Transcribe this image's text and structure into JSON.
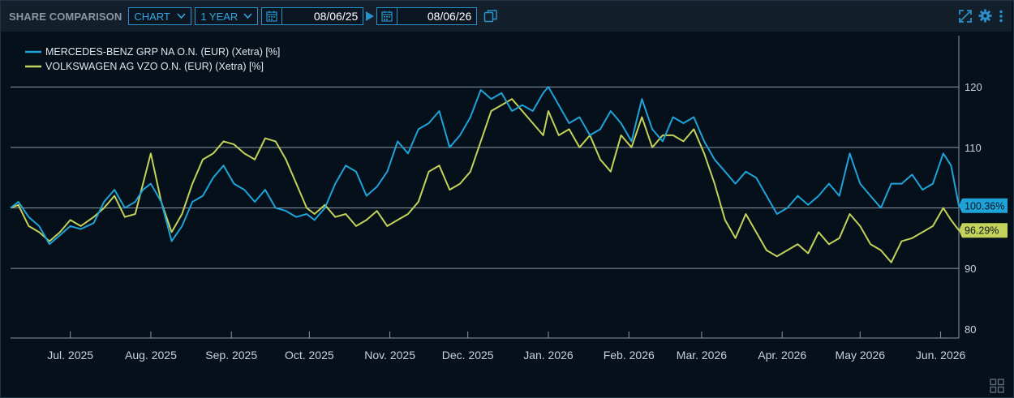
{
  "toolbar": {
    "title": "SHARE COMPARISON",
    "view_select": "CHART",
    "period_select": "1 YEAR",
    "date_from": "08/06/25",
    "date_to": "08/06/26"
  },
  "colors": {
    "mercedes": "#1ea3d9",
    "volkswagen": "#c3d25a",
    "accent": "#2a91c9",
    "grid": "#8a98a6"
  },
  "chart_data": {
    "type": "line",
    "y_ticks": [
      80,
      90,
      100,
      110,
      120
    ],
    "ylim": [
      78.5,
      129
    ],
    "x_ticks": [
      "Jul. 2025",
      "Aug. 2025",
      "Sep. 2025",
      "Oct. 2025",
      "Nov. 2025",
      "Dec. 2025",
      "Jan. 2026",
      "Feb. 2026",
      "Mar. 2026",
      "Apr. 2026",
      "May 2026",
      "Jun. 2026"
    ],
    "x_start": "2025-06-08",
    "x_end": "2026-06-08",
    "end_labels": [
      "100.36%",
      "96.29%"
    ],
    "series": [
      {
        "name": "MERCEDES-BENZ GRP NA O.N. (EUR) (Xetra) [%]",
        "points": [
          [
            "2025-06-08",
            100
          ],
          [
            "2025-06-11",
            101
          ],
          [
            "2025-06-15",
            98.5
          ],
          [
            "2025-06-19",
            97
          ],
          [
            "2025-06-23",
            94
          ],
          [
            "2025-06-27",
            95.5
          ],
          [
            "2025-07-01",
            97
          ],
          [
            "2025-07-05",
            96.5
          ],
          [
            "2025-07-10",
            97.5
          ],
          [
            "2025-07-14",
            101
          ],
          [
            "2025-07-18",
            103
          ],
          [
            "2025-07-22",
            100
          ],
          [
            "2025-07-26",
            101
          ],
          [
            "2025-07-29",
            103
          ],
          [
            "2025-08-01",
            104
          ],
          [
            "2025-08-05",
            101
          ],
          [
            "2025-08-09",
            94.5
          ],
          [
            "2025-08-13",
            97
          ],
          [
            "2025-08-17",
            101
          ],
          [
            "2025-08-21",
            102
          ],
          [
            "2025-08-25",
            105
          ],
          [
            "2025-08-29",
            107
          ],
          [
            "2025-09-02",
            104
          ],
          [
            "2025-09-06",
            103
          ],
          [
            "2025-09-10",
            101
          ],
          [
            "2025-09-14",
            103
          ],
          [
            "2025-09-18",
            100
          ],
          [
            "2025-09-22",
            99.5
          ],
          [
            "2025-09-26",
            98.5
          ],
          [
            "2025-09-30",
            99
          ],
          [
            "2025-10-03",
            98
          ],
          [
            "2025-10-07",
            100
          ],
          [
            "2025-10-11",
            104
          ],
          [
            "2025-10-15",
            107
          ],
          [
            "2025-10-19",
            106
          ],
          [
            "2025-10-23",
            102
          ],
          [
            "2025-10-27",
            103.5
          ],
          [
            "2025-10-31",
            106
          ],
          [
            "2025-11-04",
            111
          ],
          [
            "2025-11-08",
            109
          ],
          [
            "2025-11-12",
            113
          ],
          [
            "2025-11-16",
            114
          ],
          [
            "2025-11-20",
            116
          ],
          [
            "2025-11-24",
            110
          ],
          [
            "2025-11-28",
            112
          ],
          [
            "2025-12-02",
            115
          ],
          [
            "2025-12-06",
            119.5
          ],
          [
            "2025-12-10",
            118
          ],
          [
            "2025-12-14",
            119
          ],
          [
            "2025-12-18",
            116
          ],
          [
            "2025-12-22",
            117
          ],
          [
            "2025-12-26",
            116
          ],
          [
            "2025-12-30",
            119
          ],
          [
            "2026-01-01",
            120
          ],
          [
            "2026-01-05",
            117
          ],
          [
            "2026-01-09",
            114
          ],
          [
            "2026-01-13",
            115
          ],
          [
            "2026-01-17",
            112
          ],
          [
            "2026-01-21",
            113
          ],
          [
            "2026-01-25",
            116
          ],
          [
            "2026-01-29",
            114
          ],
          [
            "2026-02-02",
            111
          ],
          [
            "2026-02-06",
            118
          ],
          [
            "2026-02-10",
            113
          ],
          [
            "2026-02-14",
            111
          ],
          [
            "2026-02-18",
            115
          ],
          [
            "2026-02-22",
            114
          ],
          [
            "2026-02-26",
            115
          ],
          [
            "2026-03-02",
            111
          ],
          [
            "2026-03-06",
            108
          ],
          [
            "2026-03-10",
            106
          ],
          [
            "2026-03-14",
            104
          ],
          [
            "2026-03-18",
            106
          ],
          [
            "2026-03-22",
            105
          ],
          [
            "2026-03-26",
            102
          ],
          [
            "2026-03-30",
            99
          ],
          [
            "2026-04-03",
            100
          ],
          [
            "2026-04-07",
            102
          ],
          [
            "2026-04-11",
            100.5
          ],
          [
            "2026-04-15",
            102
          ],
          [
            "2026-04-19",
            104
          ],
          [
            "2026-04-23",
            102
          ],
          [
            "2026-04-27",
            109
          ],
          [
            "2026-05-01",
            104
          ],
          [
            "2026-05-05",
            102
          ],
          [
            "2026-05-09",
            100
          ],
          [
            "2026-05-13",
            104
          ],
          [
            "2026-05-17",
            104
          ],
          [
            "2026-05-21",
            105.5
          ],
          [
            "2026-05-25",
            103
          ],
          [
            "2026-05-29",
            104
          ],
          [
            "2026-06-02",
            109
          ],
          [
            "2026-06-05",
            107
          ],
          [
            "2026-06-08",
            100.36
          ]
        ]
      },
      {
        "name": "VOLKSWAGEN AG VZO O.N. (EUR) (Xetra) [%]",
        "points": [
          [
            "2025-06-08",
            100
          ],
          [
            "2025-06-11",
            100.5
          ],
          [
            "2025-06-15",
            97
          ],
          [
            "2025-06-19",
            96
          ],
          [
            "2025-06-23",
            94.5
          ],
          [
            "2025-06-27",
            96
          ],
          [
            "2025-07-01",
            98
          ],
          [
            "2025-07-05",
            97
          ],
          [
            "2025-07-10",
            98.5
          ],
          [
            "2025-07-14",
            100
          ],
          [
            "2025-07-18",
            102
          ],
          [
            "2025-07-22",
            98.5
          ],
          [
            "2025-07-26",
            99
          ],
          [
            "2025-07-29",
            104
          ],
          [
            "2025-08-01",
            109
          ],
          [
            "2025-08-05",
            101
          ],
          [
            "2025-08-09",
            96
          ],
          [
            "2025-08-13",
            99
          ],
          [
            "2025-08-17",
            104
          ],
          [
            "2025-08-21",
            108
          ],
          [
            "2025-08-25",
            109
          ],
          [
            "2025-08-29",
            111
          ],
          [
            "2025-09-02",
            110.5
          ],
          [
            "2025-09-06",
            109
          ],
          [
            "2025-09-10",
            108
          ],
          [
            "2025-09-14",
            111.5
          ],
          [
            "2025-09-18",
            111
          ],
          [
            "2025-09-22",
            108
          ],
          [
            "2025-09-26",
            104
          ],
          [
            "2025-09-30",
            100
          ],
          [
            "2025-10-03",
            99
          ],
          [
            "2025-10-07",
            100.5
          ],
          [
            "2025-10-11",
            98.5
          ],
          [
            "2025-10-15",
            99
          ],
          [
            "2025-10-19",
            97
          ],
          [
            "2025-10-23",
            98
          ],
          [
            "2025-10-27",
            99.5
          ],
          [
            "2025-10-31",
            97
          ],
          [
            "2025-11-04",
            98
          ],
          [
            "2025-11-08",
            99
          ],
          [
            "2025-11-12",
            101
          ],
          [
            "2025-11-16",
            106
          ],
          [
            "2025-11-20",
            107
          ],
          [
            "2025-11-24",
            103
          ],
          [
            "2025-11-28",
            104
          ],
          [
            "2025-12-02",
            106
          ],
          [
            "2025-12-06",
            111
          ],
          [
            "2025-12-10",
            116
          ],
          [
            "2025-12-14",
            117
          ],
          [
            "2025-12-18",
            118
          ],
          [
            "2025-12-22",
            116
          ],
          [
            "2025-12-26",
            114
          ],
          [
            "2025-12-30",
            112
          ],
          [
            "2026-01-01",
            116
          ],
          [
            "2026-01-05",
            112
          ],
          [
            "2026-01-09",
            113
          ],
          [
            "2026-01-13",
            110
          ],
          [
            "2026-01-17",
            112
          ],
          [
            "2026-01-21",
            108
          ],
          [
            "2026-01-25",
            106
          ],
          [
            "2026-01-29",
            112
          ],
          [
            "2026-02-02",
            110
          ],
          [
            "2026-02-06",
            115
          ],
          [
            "2026-02-10",
            110
          ],
          [
            "2026-02-14",
            112
          ],
          [
            "2026-02-18",
            112
          ],
          [
            "2026-02-22",
            111
          ],
          [
            "2026-02-26",
            113
          ],
          [
            "2026-03-02",
            109
          ],
          [
            "2026-03-06",
            104
          ],
          [
            "2026-03-10",
            98
          ],
          [
            "2026-03-14",
            95
          ],
          [
            "2026-03-18",
            99
          ],
          [
            "2026-03-22",
            96
          ],
          [
            "2026-03-26",
            93
          ],
          [
            "2026-03-30",
            92
          ],
          [
            "2026-04-03",
            93
          ],
          [
            "2026-04-07",
            94
          ],
          [
            "2026-04-11",
            92.5
          ],
          [
            "2026-04-15",
            96
          ],
          [
            "2026-04-19",
            94
          ],
          [
            "2026-04-23",
            95
          ],
          [
            "2026-04-27",
            99
          ],
          [
            "2026-05-01",
            97
          ],
          [
            "2026-05-05",
            94
          ],
          [
            "2026-05-09",
            93
          ],
          [
            "2026-05-13",
            91
          ],
          [
            "2026-05-17",
            94.5
          ],
          [
            "2026-05-21",
            95
          ],
          [
            "2026-05-25",
            96
          ],
          [
            "2026-05-29",
            97
          ],
          [
            "2026-06-02",
            100
          ],
          [
            "2026-06-05",
            98
          ],
          [
            "2026-06-08",
            96.29
          ]
        ]
      }
    ]
  }
}
